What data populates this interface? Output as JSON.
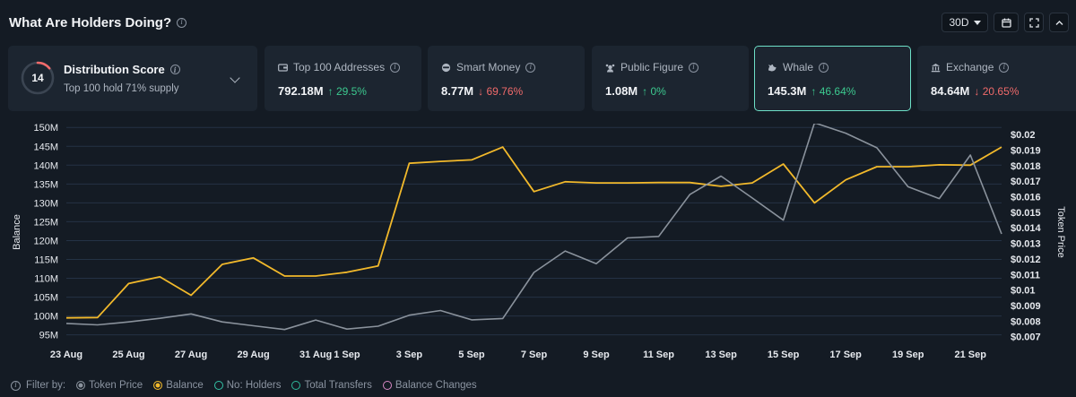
{
  "header": {
    "title": "What Are Holders Doing?"
  },
  "controls": {
    "range": "30D"
  },
  "distribution": {
    "score": "14",
    "title": "Distribution Score",
    "subtitle": "Top 100 hold 71% supply",
    "gauge_fraction": 0.14,
    "gauge_color": "#f26b6b"
  },
  "cards": [
    {
      "label": "Top 100 Addresses",
      "value": "792.18M",
      "change": "29.5%",
      "direction": "up",
      "icon": "wallet-icon"
    },
    {
      "label": "Smart Money",
      "value": "8.77M",
      "change": "69.76%",
      "direction": "down",
      "icon": "smart-money-icon"
    },
    {
      "label": "Public Figure",
      "value": "1.08M",
      "change": "0%",
      "direction": "up",
      "icon": "public-figure-icon"
    },
    {
      "label": "Whale",
      "value": "145.3M",
      "change": "46.64%",
      "direction": "up",
      "icon": "whale-icon"
    },
    {
      "label": "Exchange",
      "value": "84.64M",
      "change": "20.65%",
      "direction": "down",
      "icon": "exchange-icon"
    }
  ],
  "legend": {
    "filter_label": "Filter by:",
    "items": [
      {
        "label": "Token Price",
        "color": "#8a929c",
        "filled": true
      },
      {
        "label": "Balance",
        "color": "#f2b92b",
        "filled": true
      },
      {
        "label": "No: Holders",
        "color": "#33c3a6",
        "filled": false
      },
      {
        "label": "Total Transfers",
        "color": "#2fb89a",
        "filled": false
      },
      {
        "label": "Balance Changes",
        "color": "#d889c5",
        "filled": false
      }
    ]
  },
  "chart_data": {
    "type": "line",
    "xlabel": "",
    "ylabel": "Balance",
    "y2label": "Token Price",
    "ylim": [
      93.5,
      151
    ],
    "y2lim": [
      0.00675,
      0.0207
    ],
    "yticks": [
      "150M",
      "145M",
      "140M",
      "135M",
      "130M",
      "125M",
      "120M",
      "115M",
      "110M",
      "105M",
      "100M",
      "95M"
    ],
    "y2ticks": [
      "$0.02",
      "$0.019",
      "$0.018",
      "$0.017",
      "$0.016",
      "$0.015",
      "$0.014",
      "$0.013",
      "$0.012",
      "$0.011",
      "$0.01",
      "$0.009",
      "$0.008",
      "$0.007"
    ],
    "x": [
      "23 Aug",
      "24 Aug",
      "25 Aug",
      "26 Aug",
      "27 Aug",
      "28 Aug",
      "29 Aug",
      "30 Aug",
      "31 Aug",
      "1 Sep",
      "2 Sep",
      "3 Sep",
      "4 Sep",
      "5 Sep",
      "6 Sep",
      "7 Sep",
      "8 Sep",
      "9 Sep",
      "10 Sep",
      "11 Sep",
      "12 Sep",
      "13 Sep",
      "14 Sep",
      "15 Sep",
      "16 Sep",
      "17 Sep",
      "18 Sep",
      "19 Sep",
      "20 Sep",
      "21 Sep",
      "22 Sep"
    ],
    "xticks": [
      "23 Aug",
      "25 Aug",
      "27 Aug",
      "29 Aug",
      "31 Aug",
      "1 Sep",
      "3 Sep",
      "5 Sep",
      "7 Sep",
      "9 Sep",
      "11 Sep",
      "13 Sep",
      "15 Sep",
      "17 Sep",
      "19 Sep",
      "21 Sep"
    ],
    "series": [
      {
        "name": "Balance",
        "axis": "left",
        "color": "#f2b92b",
        "values": [
          99.5,
          99.6,
          108.6,
          110.4,
          105.5,
          113.7,
          115.4,
          110.6,
          110.6,
          111.6,
          113.3,
          140.5,
          141.0,
          141.4,
          144.8,
          133.0,
          135.6,
          135.3,
          135.3,
          135.4,
          135.4,
          134.4,
          135.3,
          140.3,
          130.0,
          136.1,
          139.6,
          139.6,
          140.1,
          140.0,
          144.8
        ]
      },
      {
        "name": "Token Price",
        "axis": "right",
        "color": "#8a929c",
        "values": [
          0.00785,
          0.00776,
          0.00795,
          0.00818,
          0.00846,
          0.00795,
          0.0077,
          0.00746,
          0.00807,
          0.00749,
          0.00767,
          0.00838,
          0.00868,
          0.00808,
          0.00817,
          0.01113,
          0.01251,
          0.01169,
          0.01335,
          0.01345,
          0.01614,
          0.01733,
          0.01592,
          0.01449,
          0.02076,
          0.02009,
          0.01915,
          0.01664,
          0.01588,
          0.01868,
          0.01361
        ]
      }
    ]
  }
}
